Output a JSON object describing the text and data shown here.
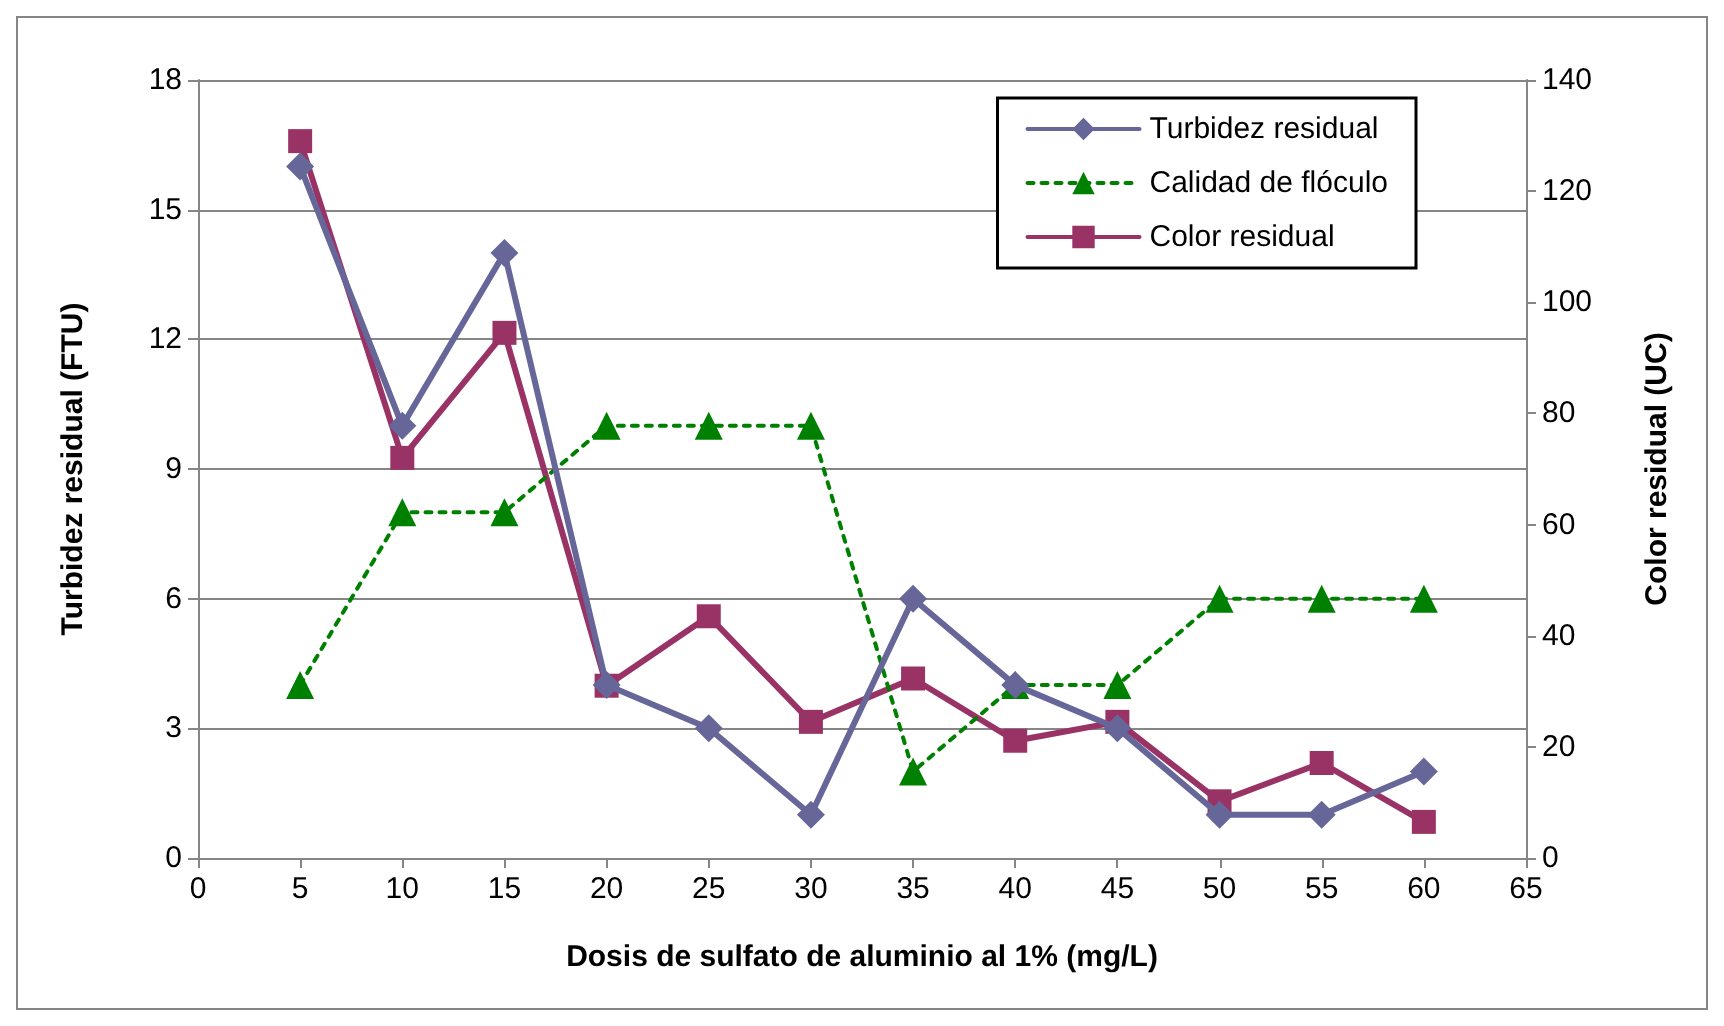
{
  "chart_data": {
    "type": "line",
    "xlabel": "Dosis de sulfato de aluminio al 1% (mg/L)",
    "ylabel": "Turbidez residual (FTU)",
    "y2label": "Color residual (UC)",
    "x": [
      5,
      10,
      15,
      20,
      25,
      30,
      35,
      40,
      45,
      50,
      55,
      60
    ],
    "xlim": [
      0,
      65
    ],
    "xticks": [
      0,
      5,
      10,
      15,
      20,
      25,
      30,
      35,
      40,
      45,
      50,
      55,
      60,
      65
    ],
    "ylim": [
      0,
      18
    ],
    "yticks": [
      0,
      3,
      6,
      9,
      12,
      15,
      18
    ],
    "y2lim": [
      0,
      140
    ],
    "y2ticks": [
      0,
      20,
      40,
      60,
      80,
      100,
      120,
      140
    ],
    "grid": "y",
    "legend": "top right",
    "series": [
      {
        "name": "Turbidez residual",
        "color": "#666699",
        "marker": "diamond",
        "line_style": "solid",
        "values": [
          16,
          10,
          14,
          4,
          3,
          1,
          6,
          4,
          3,
          1,
          1,
          2
        ]
      },
      {
        "name": "Calidad de flóculo",
        "color": "#008000",
        "marker": "triangle",
        "line_style": "dashed",
        "values": [
          4,
          8,
          8,
          10,
          10,
          10,
          2,
          4,
          4,
          6,
          6,
          6
        ]
      },
      {
        "name": "Color residual",
        "color": "#993366",
        "marker": "square",
        "line_style": "solid",
        "axis": "y2",
        "values": [
          129,
          72,
          94.5,
          31,
          43.5,
          24.5,
          32.3,
          21.1,
          24.5,
          10.2,
          17.1,
          6.5
        ]
      }
    ]
  }
}
